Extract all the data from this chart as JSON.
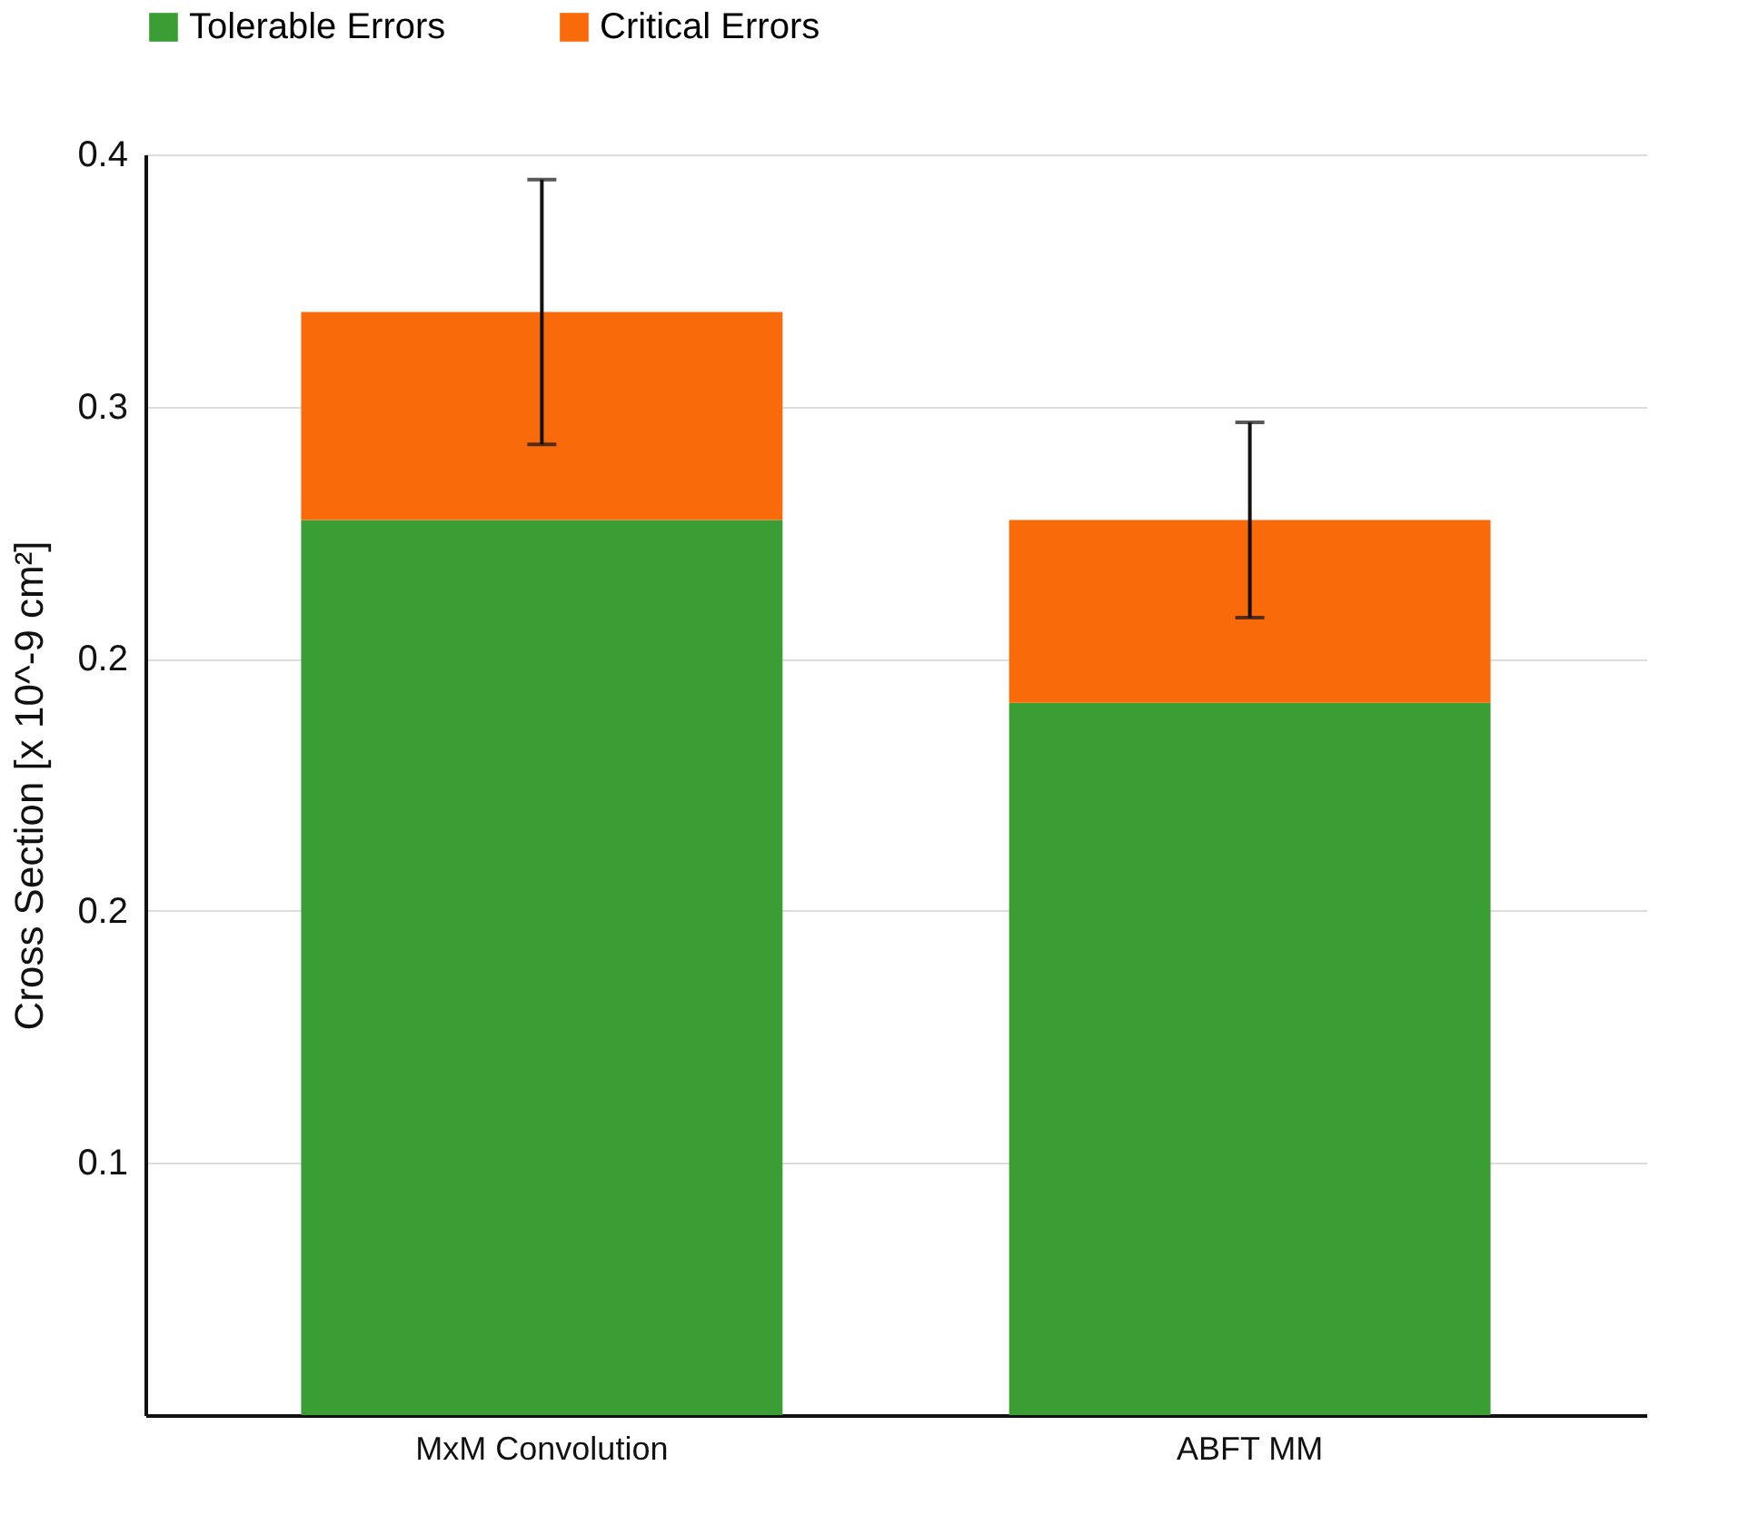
{
  "chart_data": {
    "type": "bar",
    "stacked": true,
    "categories": [
      "MxM Convolution",
      "ABFT MM"
    ],
    "series": [
      {
        "name": "Tolerable Errors",
        "color": "#3a9e35",
        "values": [
          0.284,
          0.226
        ]
      },
      {
        "name": "Critical Errors",
        "color": "#f96a0a",
        "values": [
          0.066,
          0.058
        ],
        "errors": [
          0.042,
          0.031
        ]
      }
    ],
    "ylabel": "Cross Section [x 10^-9 cm²]",
    "ylim": [
      0,
      0.4
    ],
    "yticks": [
      {
        "value": 0.08,
        "label": "0.1"
      },
      {
        "value": 0.16,
        "label": "0.2"
      },
      {
        "value": 0.24,
        "label": "0.2"
      },
      {
        "value": 0.32,
        "label": "0.3"
      },
      {
        "value": 0.4,
        "label": "0.4"
      }
    ],
    "grid": "y",
    "legend": "top"
  }
}
